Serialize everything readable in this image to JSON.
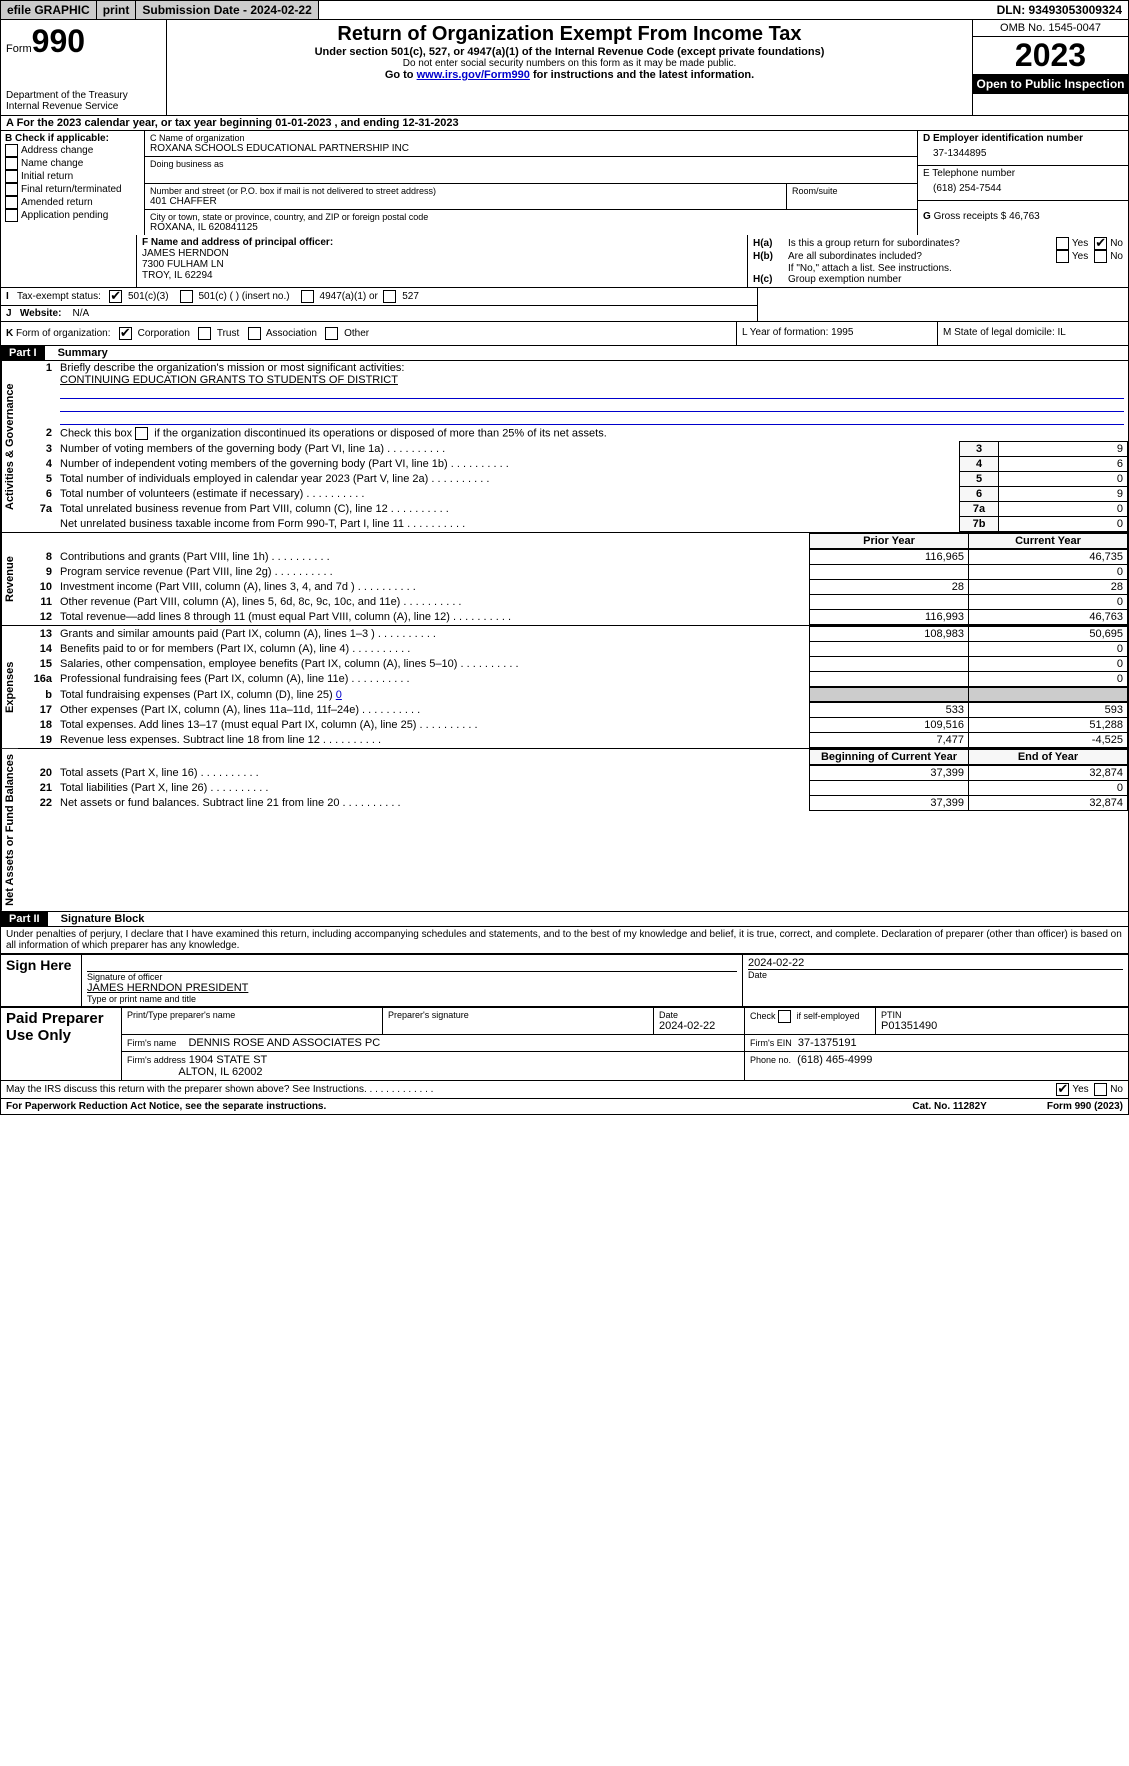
{
  "topbar": {
    "efile": "efile GRAPHIC",
    "print": "print",
    "submission": "Submission Date - 2024-02-22",
    "dln": "DLN: 93493053009324"
  },
  "header": {
    "form_word": "Form",
    "form_num": "990",
    "dept": "Department of the Treasury",
    "irs": "Internal Revenue Service",
    "title": "Return of Organization Exempt From Income Tax",
    "sub1": "Under section 501(c), 527, or 4947(a)(1) of the Internal Revenue Code (except private foundations)",
    "sub2": "Do not enter social security numbers on this form as it may be made public.",
    "sub3_pre": "Go to ",
    "sub3_link": "www.irs.gov/Form990",
    "sub3_post": " for instructions and the latest information.",
    "omb": "OMB No. 1545-0047",
    "year": "2023",
    "open": "Open to Public Inspection"
  },
  "row_a": "A For the 2023 calendar year, or tax year beginning 01-01-2023   , and ending 12-31-2023",
  "box_b": {
    "label": "B Check if applicable:",
    "addr": "Address change",
    "name": "Name change",
    "init": "Initial return",
    "final": "Final return/terminated",
    "amend": "Amended return",
    "app": "Application pending"
  },
  "box_c": {
    "name_lbl": "C Name of organization",
    "name": "ROXANA SCHOOLS EDUCATIONAL PARTNERSHIP INC",
    "dba_lbl": "Doing business as",
    "dba": "",
    "street_lbl": "Number and street (or P.O. box if mail is not delivered to street address)",
    "street": "401 CHAFFER",
    "room_lbl": "Room/suite",
    "city_lbl": "City or town, state or province, country, and ZIP or foreign postal code",
    "city": "ROXANA, IL  620841125"
  },
  "box_d": {
    "lbl": "D Employer identification number",
    "val": "37-1344895"
  },
  "box_e": {
    "lbl": "E Telephone number",
    "val": "(618) 254-7544"
  },
  "box_g": {
    "lbl": "G",
    "text": "Gross receipts $ 46,763"
  },
  "box_f": {
    "lbl": "F  Name and address of principal officer:",
    "name": "JAMES HERNDON",
    "addr1": "7300 FULHAM LN",
    "addr2": "TROY, IL  62294"
  },
  "box_h": {
    "a_lbl": "H(a)",
    "a_text": "Is this a group return for subordinates?",
    "b_lbl": "H(b)",
    "b_text": "Are all subordinates included?",
    "b_note": "If \"No,\" attach a list. See instructions.",
    "c_lbl": "H(c)",
    "c_text": "Group exemption number"
  },
  "tax_status": {
    "lbl_i": "I",
    "lbl": "Tax-exempt status:",
    "c3": "501(c)(3)",
    "c": "501(c) (  ) (insert no.)",
    "a1": "4947(a)(1) or",
    "s527": "527"
  },
  "website": {
    "lbl_j": "J",
    "lbl": "Website:",
    "val": "N/A"
  },
  "box_k": {
    "lbl_k": "K",
    "lbl": "Form of organization:",
    "corp": "Corporation",
    "trust": "Trust",
    "assoc": "Association",
    "other": "Other"
  },
  "box_l": {
    "text": "L Year of formation: 1995"
  },
  "box_m": {
    "text": "M State of legal domicile: IL"
  },
  "part1": {
    "hdr": "Part I",
    "title": "Summary",
    "side_ag": "Activities & Governance",
    "side_rev": "Revenue",
    "side_exp": "Expenses",
    "side_na": "Net Assets or Fund Balances",
    "q1_lbl": "1",
    "q1": "Briefly describe the organization's mission or most significant activities:",
    "q1_val": "CONTINUING EDUCATION GRANTS TO STUDENTS OF DISTRICT",
    "q2_lbl": "2",
    "q2": "Check this box         if the organization discontinued its operations or disposed of more than 25% of its net assets.",
    "lines_ag": [
      {
        "n": "3",
        "t": "Number of voting members of the governing body (Part VI, line 1a)",
        "b": "3",
        "v": "9"
      },
      {
        "n": "4",
        "t": "Number of independent voting members of the governing body (Part VI, line 1b)",
        "b": "4",
        "v": "6"
      },
      {
        "n": "5",
        "t": "Total number of individuals employed in calendar year 2023 (Part V, line 2a)",
        "b": "5",
        "v": "0"
      },
      {
        "n": "6",
        "t": "Total number of volunteers (estimate if necessary)",
        "b": "6",
        "v": "9"
      },
      {
        "n": "7a",
        "t": "Total unrelated business revenue from Part VIII, column (C), line 12",
        "b": "7a",
        "v": "0"
      },
      {
        "n": "",
        "t": "Net unrelated business taxable income from Form 990-T, Part I, line 11",
        "b": "7b",
        "v": "0"
      }
    ],
    "col_prior": "Prior Year",
    "col_curr": "Current Year",
    "lines_rev": [
      {
        "n": "8",
        "t": "Contributions and grants (Part VIII, line 1h)",
        "p": "116,965",
        "c": "46,735"
      },
      {
        "n": "9",
        "t": "Program service revenue (Part VIII, line 2g)",
        "p": "",
        "c": "0"
      },
      {
        "n": "10",
        "t": "Investment income (Part VIII, column (A), lines 3, 4, and 7d )",
        "p": "28",
        "c": "28"
      },
      {
        "n": "11",
        "t": "Other revenue (Part VIII, column (A), lines 5, 6d, 8c, 9c, 10c, and 11e)",
        "p": "",
        "c": "0"
      },
      {
        "n": "12",
        "t": "Total revenue—add lines 8 through 11 (must equal Part VIII, column (A), line 12)",
        "p": "116,993",
        "c": "46,763"
      }
    ],
    "lines_exp": [
      {
        "n": "13",
        "t": "Grants and similar amounts paid (Part IX, column (A), lines 1–3 )",
        "p": "108,983",
        "c": "50,695"
      },
      {
        "n": "14",
        "t": "Benefits paid to or for members (Part IX, column (A), line 4)",
        "p": "",
        "c": "0"
      },
      {
        "n": "15",
        "t": "Salaries, other compensation, employee benefits (Part IX, column (A), lines 5–10)",
        "p": "",
        "c": "0"
      },
      {
        "n": "16a",
        "t": "Professional fundraising fees (Part IX, column (A), line 11e)",
        "p": "",
        "c": "0"
      }
    ],
    "line_b": {
      "n": "b",
      "t": "Total fundraising expenses (Part IX, column (D), line 25)",
      "v": "0"
    },
    "lines_exp2": [
      {
        "n": "17",
        "t": "Other expenses (Part IX, column (A), lines 11a–11d, 11f–24e)",
        "p": "533",
        "c": "593"
      },
      {
        "n": "18",
        "t": "Total expenses. Add lines 13–17 (must equal Part IX, column (A), line 25)",
        "p": "109,516",
        "c": "51,288"
      },
      {
        "n": "19",
        "t": "Revenue less expenses. Subtract line 18 from line 12",
        "p": "7,477",
        "c": "-4,525"
      }
    ],
    "col_begin": "Beginning of Current Year",
    "col_end": "End of Year",
    "lines_na": [
      {
        "n": "20",
        "t": "Total assets (Part X, line 16)",
        "p": "37,399",
        "c": "32,874"
      },
      {
        "n": "21",
        "t": "Total liabilities (Part X, line 26)",
        "p": "",
        "c": "0"
      },
      {
        "n": "22",
        "t": "Net assets or fund balances. Subtract line 21 from line 20",
        "p": "37,399",
        "c": "32,874"
      }
    ]
  },
  "part2": {
    "hdr": "Part II",
    "title": "Signature Block",
    "decl": "Under penalties of perjury, I declare that I have examined this return, including accompanying schedules and statements, and to the best of my knowledge and belief, it is true, correct, and complete. Declaration of preparer (other than officer) is based on all information of which preparer has any knowledge.",
    "sign_here": "Sign Here",
    "sig_date": "2024-02-22",
    "sig_officer_lbl": "Signature of officer",
    "sig_officer": "JAMES HERNDON  PRESIDENT",
    "sig_type_lbl": "Type or print name and title",
    "date_lbl": "Date",
    "paid": "Paid Preparer Use Only",
    "prep_name_lbl": "Print/Type preparer's name",
    "prep_sig_lbl": "Preparer's signature",
    "prep_date_lbl": "Date",
    "prep_date": "2024-02-22",
    "prep_check": "Check         if self-employed",
    "ptin_lbl": "PTIN",
    "ptin": "P01351490",
    "firm_name_lbl": "Firm's name",
    "firm_name": "DENNIS ROSE AND ASSOCIATES PC",
    "firm_ein_lbl": "Firm's EIN",
    "firm_ein": "37-1375191",
    "firm_addr_lbl": "Firm's address",
    "firm_addr1": "1904 STATE ST",
    "firm_addr2": "ALTON, IL  62002",
    "phone_lbl": "Phone no.",
    "phone": "(618) 465-4999",
    "discuss": "May the IRS discuss this return with the preparer shown above? See Instructions.",
    "yes": "Yes",
    "no": "No"
  },
  "footer": {
    "pra": "For Paperwork Reduction Act Notice, see the separate instructions.",
    "cat": "Cat. No. 11282Y",
    "form": "Form 990 (2023)"
  }
}
